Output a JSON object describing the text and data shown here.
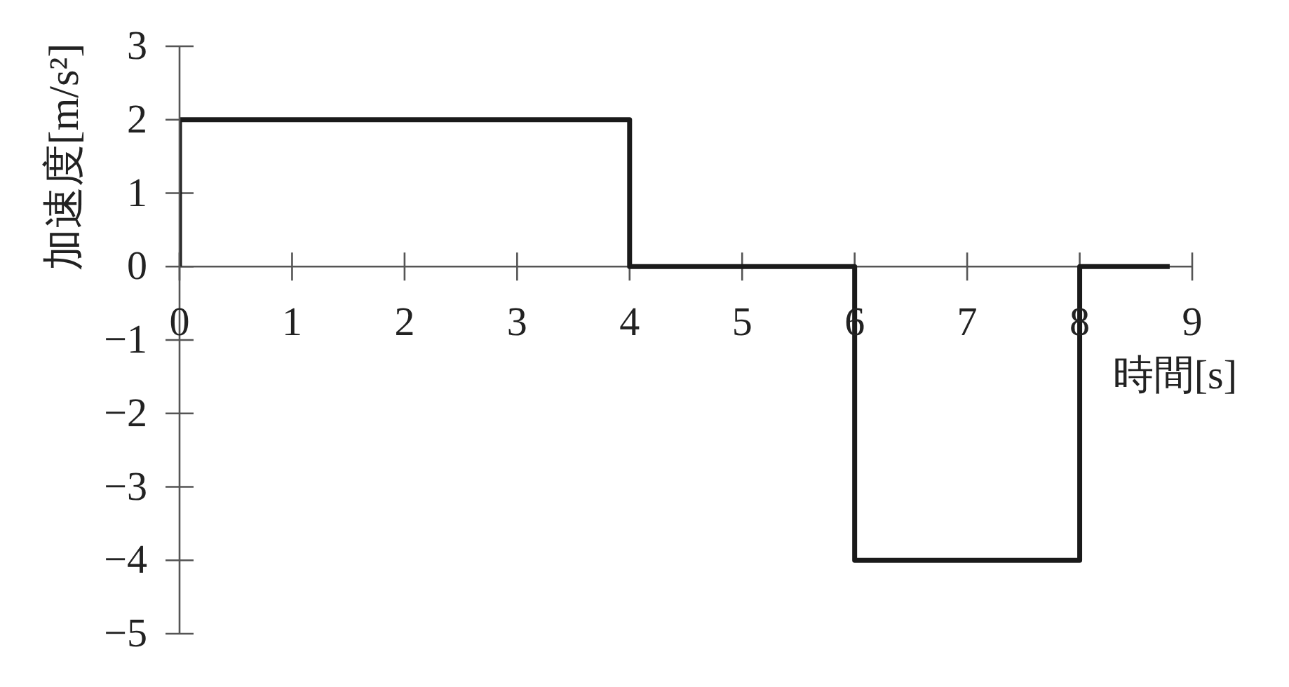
{
  "chart_data": {
    "type": "step",
    "xlabel": "時間[s]",
    "ylabel": "加速度[m/s²]",
    "x": [
      0,
      0,
      4,
      6,
      8,
      8.8
    ],
    "values": [
      0,
      2,
      0,
      -4,
      0,
      0
    ],
    "color": "#1a1a1a",
    "xlim": [
      0,
      9
    ],
    "xticks": [
      0,
      1,
      2,
      3,
      4,
      5,
      6,
      7,
      8,
      9
    ],
    "ylim": [
      -5,
      3
    ],
    "yticks": [
      -5,
      -4,
      -3,
      -2,
      -1,
      0,
      1,
      2,
      3
    ],
    "marker": "none"
  }
}
